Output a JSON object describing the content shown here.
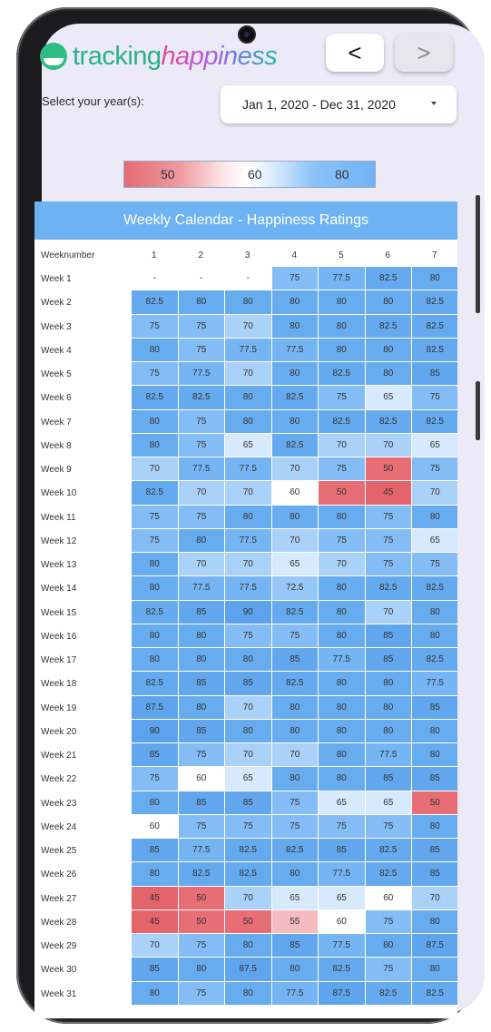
{
  "app": {
    "logo_word1": "tracking",
    "logo_word2": "happiness",
    "prev_label": "<",
    "next_label": ">"
  },
  "filter": {
    "label": "Select your year(s):",
    "value": "Jan 1, 2020 - Dec 31, 2020"
  },
  "legend": {
    "low": "50",
    "mid": "60",
    "high": "80",
    "colors": {
      "low": "#e46b73",
      "mid": "#ffffff",
      "high": "#6fb3f5"
    }
  },
  "table": {
    "title": "Weekly Calendar - Happiness Ratings",
    "row_header": "Weeknumber",
    "columns": [
      "1",
      "2",
      "3",
      "4",
      "5",
      "6",
      "7"
    ],
    "rows": [
      {
        "week": "Week 1",
        "values": [
          "-",
          "-",
          "-",
          "75",
          "77.5",
          "82.5",
          "80"
        ]
      },
      {
        "week": "Week 2",
        "values": [
          "82.5",
          "80",
          "80",
          "80",
          "80",
          "80",
          "82.5"
        ]
      },
      {
        "week": "Week 3",
        "values": [
          "75",
          "75",
          "70",
          "80",
          "80",
          "82.5",
          "82.5"
        ]
      },
      {
        "week": "Week 4",
        "values": [
          "80",
          "75",
          "77.5",
          "77.5",
          "80",
          "80",
          "82.5"
        ]
      },
      {
        "week": "Week 5",
        "values": [
          "75",
          "77.5",
          "70",
          "80",
          "82.5",
          "80",
          "85"
        ]
      },
      {
        "week": "Week 6",
        "values": [
          "82.5",
          "82.5",
          "80",
          "82.5",
          "75",
          "65",
          "75"
        ]
      },
      {
        "week": "Week 7",
        "values": [
          "80",
          "75",
          "80",
          "80",
          "82.5",
          "82.5",
          "82.5"
        ]
      },
      {
        "week": "Week 8",
        "values": [
          "80",
          "75",
          "65",
          "82.5",
          "70",
          "70",
          "65"
        ]
      },
      {
        "week": "Week 9",
        "values": [
          "70",
          "77.5",
          "77.5",
          "70",
          "75",
          "50",
          "75"
        ]
      },
      {
        "week": "Week 10",
        "values": [
          "82.5",
          "70",
          "70",
          "60",
          "50",
          "45",
          "70"
        ]
      },
      {
        "week": "Week 11",
        "values": [
          "75",
          "75",
          "80",
          "80",
          "80",
          "75",
          "80"
        ]
      },
      {
        "week": "Week 12",
        "values": [
          "75",
          "80",
          "77.5",
          "70",
          "75",
          "75",
          "65"
        ]
      },
      {
        "week": "Week 13",
        "values": [
          "80",
          "70",
          "70",
          "65",
          "70",
          "75",
          "75"
        ]
      },
      {
        "week": "Week 14",
        "values": [
          "80",
          "77.5",
          "77.5",
          "72.5",
          "80",
          "82.5",
          "82.5"
        ]
      },
      {
        "week": "Week 15",
        "values": [
          "82.5",
          "85",
          "90",
          "82.5",
          "80",
          "70",
          "80"
        ]
      },
      {
        "week": "Week 16",
        "values": [
          "80",
          "80",
          "75",
          "75",
          "80",
          "85",
          "80"
        ]
      },
      {
        "week": "Week 17",
        "values": [
          "80",
          "80",
          "80",
          "85",
          "77.5",
          "85",
          "82.5"
        ]
      },
      {
        "week": "Week 18",
        "values": [
          "82.5",
          "85",
          "85",
          "82.5",
          "80",
          "80",
          "77.5"
        ]
      },
      {
        "week": "Week 19",
        "values": [
          "87.5",
          "80",
          "70",
          "80",
          "80",
          "80",
          "85"
        ]
      },
      {
        "week": "Week 20",
        "values": [
          "90",
          "85",
          "80",
          "80",
          "80",
          "80",
          "80"
        ]
      },
      {
        "week": "Week 21",
        "values": [
          "85",
          "75",
          "70",
          "70",
          "80",
          "77.5",
          "80"
        ]
      },
      {
        "week": "Week 22",
        "values": [
          "75",
          "60",
          "65",
          "80",
          "80",
          "85",
          "85"
        ]
      },
      {
        "week": "Week 23",
        "values": [
          "80",
          "85",
          "85",
          "75",
          "65",
          "65",
          "50"
        ]
      },
      {
        "week": "Week 24",
        "values": [
          "60",
          "75",
          "75",
          "75",
          "75",
          "75",
          "80"
        ]
      },
      {
        "week": "Week 25",
        "values": [
          "85",
          "77.5",
          "82.5",
          "82.5",
          "85",
          "82.5",
          "85"
        ]
      },
      {
        "week": "Week 26",
        "values": [
          "80",
          "82.5",
          "82.5",
          "80",
          "77.5",
          "82.5",
          "85"
        ]
      },
      {
        "week": "Week 27",
        "values": [
          "45",
          "50",
          "70",
          "65",
          "65",
          "60",
          "70"
        ]
      },
      {
        "week": "Week 28",
        "values": [
          "45",
          "50",
          "50",
          "55",
          "60",
          "75",
          "80"
        ]
      },
      {
        "week": "Week 29",
        "values": [
          "70",
          "75",
          "80",
          "85",
          "77.5",
          "80",
          "87.5"
        ]
      },
      {
        "week": "Week 30",
        "values": [
          "85",
          "80",
          "87.5",
          "80",
          "82.5",
          "75",
          "80"
        ]
      },
      {
        "week": "Week 31",
        "values": [
          "80",
          "75",
          "80",
          "77.5",
          "87.5",
          "82.5",
          "82.5"
        ]
      }
    ]
  }
}
